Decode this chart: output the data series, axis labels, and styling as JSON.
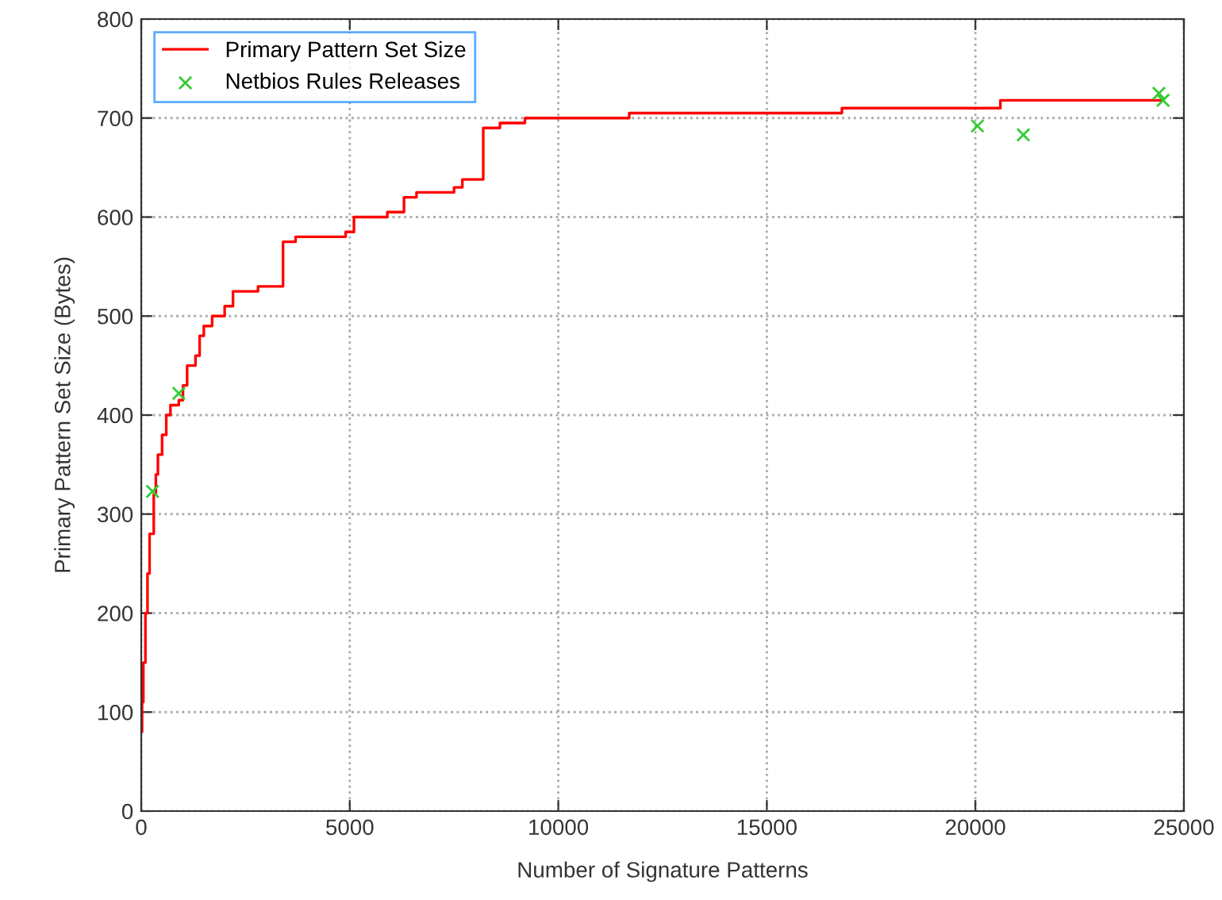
{
  "chart_data": {
    "type": "step",
    "xlabel": "Number of Signature Patterns",
    "ylabel": "Primary Pattern Set Size (Bytes)",
    "xlim": [
      0,
      25000
    ],
    "ylim": [
      0,
      800
    ],
    "xticks": [
      0,
      5000,
      10000,
      15000,
      20000,
      25000
    ],
    "yticks": [
      0,
      100,
      200,
      300,
      400,
      500,
      600,
      700,
      800
    ],
    "grid": true,
    "legend": "top left",
    "series": [
      {
        "name": "Primary Pattern Set Size",
        "color": "#ff0000",
        "marker": "none",
        "x": [
          0,
          20,
          50,
          100,
          150,
          200,
          300,
          350,
          400,
          500,
          600,
          700,
          900,
          1000,
          1100,
          1300,
          1400,
          1500,
          1700,
          2000,
          2200,
          2800,
          3400,
          3700,
          4900,
          5100,
          5900,
          6300,
          6600,
          7500,
          7700,
          8200,
          8600,
          9200,
          11700,
          16800,
          20600,
          24500
        ],
        "values": [
          80,
          110,
          150,
          200,
          240,
          280,
          320,
          340,
          360,
          380,
          400,
          410,
          415,
          430,
          450,
          460,
          480,
          490,
          500,
          510,
          525,
          530,
          575,
          580,
          585,
          600,
          605,
          620,
          625,
          630,
          638,
          690,
          695,
          700,
          705,
          710,
          718,
          718
        ]
      },
      {
        "name": "Netbios Rules Releases",
        "type": "scatter",
        "color": "#33cc33",
        "marker": "cross",
        "x": [
          270,
          900,
          20050,
          21150,
          24400,
          24500
        ],
        "values": [
          323,
          422,
          692,
          683,
          725,
          718
        ]
      }
    ]
  }
}
